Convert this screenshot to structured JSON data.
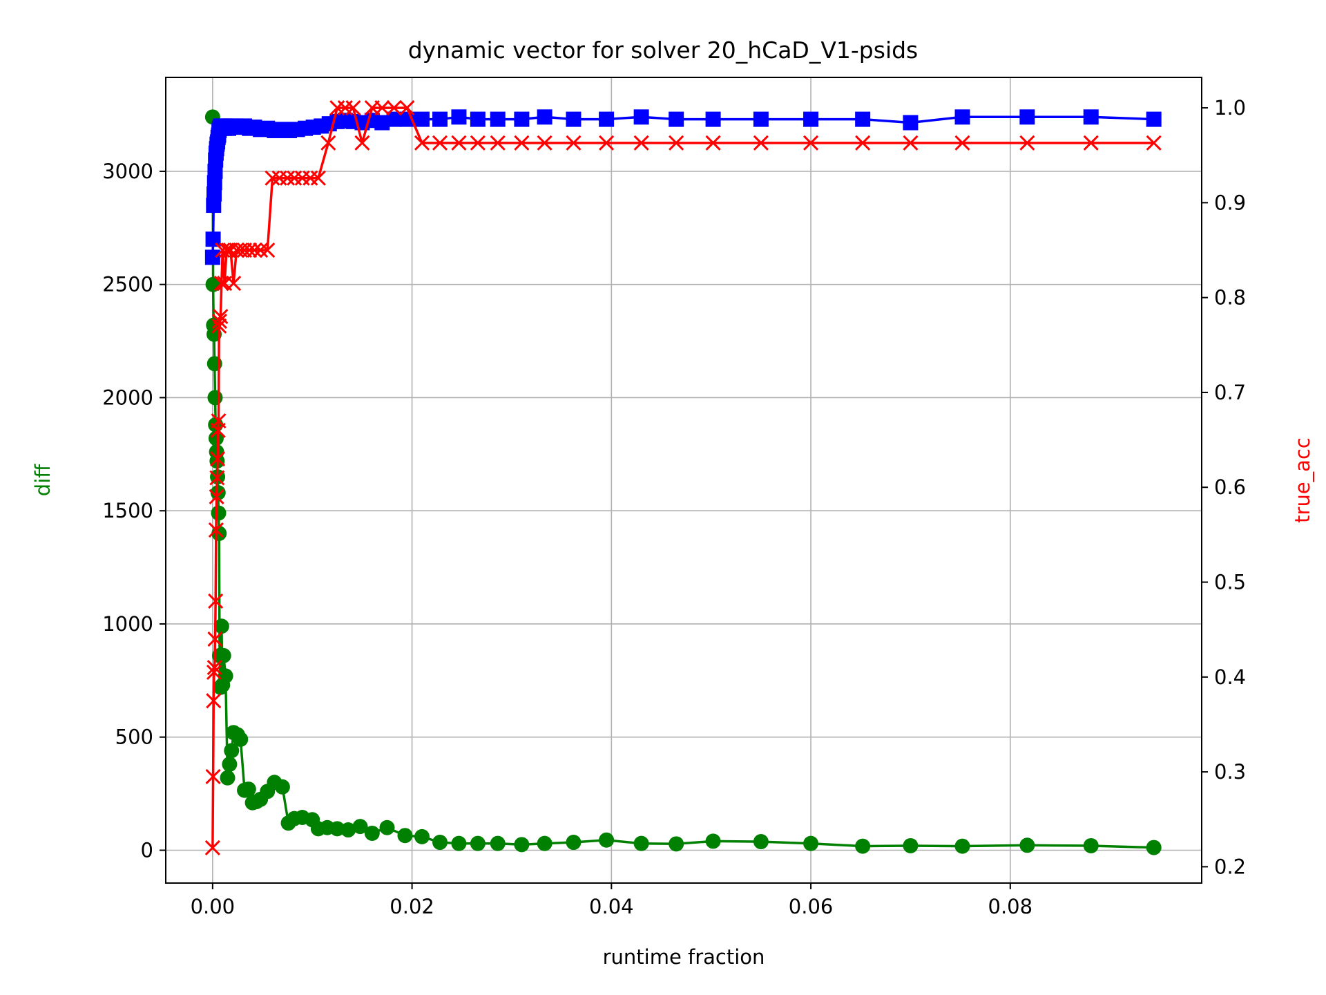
{
  "chart_data": {
    "type": "line",
    "title": "dynamic vector for solver 20_hCaD_V1-psids",
    "xlabel": "runtime fraction",
    "ylabel": "diff",
    "ylabel_right": "true_acc",
    "xlim": [
      -0.0047,
      0.0992
    ],
    "ylim": [
      -145,
      3415
    ],
    "ylim_right": [
      0.1828,
      1.0321
    ],
    "x_ticks": [
      0.0,
      0.02,
      0.04,
      0.06,
      0.08
    ],
    "x_tick_labels": [
      "0.00",
      "0.02",
      "0.04",
      "0.06",
      "0.08"
    ],
    "y_ticks": [
      0,
      500,
      1000,
      1500,
      2000,
      2500,
      3000
    ],
    "y_tick_labels": [
      "0",
      "500",
      "1000",
      "1500",
      "2000",
      "2500",
      "3000"
    ],
    "y_right_ticks": [
      0.2,
      0.3,
      0.4,
      0.5,
      0.6,
      0.7,
      0.8,
      0.9,
      1.0
    ],
    "y_right_tick_labels": [
      "0.2",
      "0.3",
      "0.4",
      "0.5",
      "0.6",
      "0.7",
      "0.8",
      "0.9",
      "1.0"
    ],
    "grid": true,
    "colors": {
      "diff": "#008000",
      "blue": "#0000ff",
      "true_acc": "#ff0000",
      "left_label": "#008000",
      "right_label": "#ff0000"
    },
    "series": [
      {
        "axis": "left",
        "color": "#008000",
        "marker": "circle",
        "points": [
          [
            0.0,
            3240
          ],
          [
            5e-05,
            2500
          ],
          [
            0.0001,
            2320
          ],
          [
            0.00015,
            2280
          ],
          [
            0.0002,
            2150
          ],
          [
            0.00025,
            2000
          ],
          [
            0.0003,
            1880
          ],
          [
            0.00035,
            1820
          ],
          [
            0.0004,
            1760
          ],
          [
            0.00045,
            1720
          ],
          [
            0.0005,
            1650
          ],
          [
            0.00055,
            1580
          ],
          [
            0.0006,
            1490
          ],
          [
            0.00065,
            1400
          ],
          [
            0.0007,
            860
          ],
          [
            0.0008,
            720
          ],
          [
            0.0009,
            990
          ],
          [
            0.001,
            730
          ],
          [
            0.0011,
            860
          ],
          [
            0.0013,
            770
          ],
          [
            0.0015,
            320
          ],
          [
            0.0017,
            380
          ],
          [
            0.0019,
            440
          ],
          [
            0.0021,
            520
          ],
          [
            0.0025,
            510
          ],
          [
            0.0028,
            490
          ],
          [
            0.0032,
            265
          ],
          [
            0.0036,
            270
          ],
          [
            0.004,
            210
          ],
          [
            0.0044,
            215
          ],
          [
            0.0048,
            225
          ],
          [
            0.0055,
            260
          ],
          [
            0.0062,
            300
          ],
          [
            0.007,
            280
          ],
          [
            0.0076,
            120
          ],
          [
            0.0082,
            140
          ],
          [
            0.009,
            145
          ],
          [
            0.01,
            135
          ],
          [
            0.0106,
            95
          ],
          [
            0.0115,
            100
          ],
          [
            0.0125,
            95
          ],
          [
            0.0136,
            90
          ],
          [
            0.0148,
            105
          ],
          [
            0.016,
            75
          ],
          [
            0.0175,
            100
          ],
          [
            0.0193,
            65
          ],
          [
            0.021,
            60
          ],
          [
            0.0228,
            35
          ],
          [
            0.0247,
            30
          ],
          [
            0.0266,
            30
          ],
          [
            0.0286,
            30
          ],
          [
            0.031,
            25
          ],
          [
            0.0333,
            30
          ],
          [
            0.0362,
            35
          ],
          [
            0.0395,
            45
          ],
          [
            0.043,
            30
          ],
          [
            0.0465,
            28
          ],
          [
            0.0502,
            40
          ],
          [
            0.055,
            38
          ],
          [
            0.06,
            30
          ],
          [
            0.0652,
            18
          ],
          [
            0.07,
            20
          ],
          [
            0.0752,
            18
          ],
          [
            0.0817,
            22
          ],
          [
            0.0881,
            20
          ],
          [
            0.0944,
            12
          ]
        ]
      },
      {
        "axis": "left",
        "color": "#0000ff",
        "marker": "square",
        "points": [
          [
            0.0,
            2620
          ],
          [
            5e-05,
            2700
          ],
          [
            0.0001,
            2850
          ],
          [
            0.00015,
            2900
          ],
          [
            0.0002,
            2950
          ],
          [
            0.00025,
            3000
          ],
          [
            0.0003,
            3050
          ],
          [
            0.00035,
            3080
          ],
          [
            0.0004,
            3100
          ],
          [
            0.00045,
            3120
          ],
          [
            0.0005,
            3130
          ],
          [
            0.00055,
            3150
          ],
          [
            0.0006,
            3160
          ],
          [
            0.00065,
            3180
          ],
          [
            0.0007,
            3190
          ],
          [
            0.0008,
            3200
          ],
          [
            0.0009,
            3190
          ],
          [
            0.001,
            3200
          ],
          [
            0.0012,
            3190
          ],
          [
            0.0014,
            3200
          ],
          [
            0.0016,
            3190
          ],
          [
            0.0018,
            3200
          ],
          [
            0.0021,
            3195
          ],
          [
            0.0024,
            3200
          ],
          [
            0.0028,
            3195
          ],
          [
            0.0032,
            3200
          ],
          [
            0.0037,
            3190
          ],
          [
            0.0042,
            3195
          ],
          [
            0.0048,
            3185
          ],
          [
            0.0055,
            3190
          ],
          [
            0.0062,
            3180
          ],
          [
            0.007,
            3185
          ],
          [
            0.0077,
            3180
          ],
          [
            0.0085,
            3185
          ],
          [
            0.0093,
            3190
          ],
          [
            0.0101,
            3195
          ],
          [
            0.0109,
            3200
          ],
          [
            0.0117,
            3210
          ],
          [
            0.0125,
            3220
          ],
          [
            0.0133,
            3225
          ],
          [
            0.0141,
            3220
          ],
          [
            0.015,
            3215
          ],
          [
            0.016,
            3225
          ],
          [
            0.017,
            3215
          ],
          [
            0.0182,
            3230
          ],
          [
            0.0195,
            3230
          ],
          [
            0.021,
            3230
          ],
          [
            0.0228,
            3230
          ],
          [
            0.0247,
            3240
          ],
          [
            0.0266,
            3230
          ],
          [
            0.0286,
            3230
          ],
          [
            0.031,
            3230
          ],
          [
            0.0333,
            3240
          ],
          [
            0.0362,
            3230
          ],
          [
            0.0395,
            3230
          ],
          [
            0.043,
            3240
          ],
          [
            0.0465,
            3230
          ],
          [
            0.0502,
            3230
          ],
          [
            0.055,
            3230
          ],
          [
            0.06,
            3230
          ],
          [
            0.0652,
            3230
          ],
          [
            0.07,
            3215
          ],
          [
            0.0752,
            3240
          ],
          [
            0.0817,
            3240
          ],
          [
            0.0881,
            3240
          ],
          [
            0.0944,
            3230
          ]
        ]
      },
      {
        "axis": "right",
        "name": "true_acc",
        "color": "#ff0000",
        "marker": "x",
        "points": [
          [
            0.0,
            0.22
          ],
          [
            5e-05,
            0.295
          ],
          [
            0.0001,
            0.375
          ],
          [
            0.00015,
            0.405
          ],
          [
            0.0002,
            0.41
          ],
          [
            0.00025,
            0.44
          ],
          [
            0.0003,
            0.48
          ],
          [
            0.00035,
            0.555
          ],
          [
            0.0004,
            0.59
          ],
          [
            0.00045,
            0.61
          ],
          [
            0.0005,
            0.63
          ],
          [
            0.00055,
            0.66
          ],
          [
            0.0006,
            0.67
          ],
          [
            0.00065,
            0.77
          ],
          [
            0.0007,
            0.775
          ],
          [
            0.0008,
            0.78
          ],
          [
            0.0009,
            0.815
          ],
          [
            0.001,
            0.85
          ],
          [
            0.0012,
            0.815
          ],
          [
            0.0014,
            0.85
          ],
          [
            0.0016,
            0.85
          ],
          [
            0.0018,
            0.85
          ],
          [
            0.0021,
            0.815
          ],
          [
            0.0024,
            0.85
          ],
          [
            0.0028,
            0.85
          ],
          [
            0.0032,
            0.85
          ],
          [
            0.0037,
            0.85
          ],
          [
            0.0042,
            0.85
          ],
          [
            0.0048,
            0.85
          ],
          [
            0.0055,
            0.85
          ],
          [
            0.006,
            0.926
          ],
          [
            0.0067,
            0.926
          ],
          [
            0.0075,
            0.926
          ],
          [
            0.0082,
            0.926
          ],
          [
            0.009,
            0.926
          ],
          [
            0.0098,
            0.926
          ],
          [
            0.0106,
            0.926
          ],
          [
            0.0116,
            0.963
          ],
          [
            0.0125,
            1.0
          ],
          [
            0.0133,
            1.0
          ],
          [
            0.0141,
            1.0
          ],
          [
            0.015,
            0.963
          ],
          [
            0.016,
            1.0
          ],
          [
            0.017,
            1.0
          ],
          [
            0.0182,
            1.0
          ],
          [
            0.0195,
            1.0
          ],
          [
            0.021,
            0.963
          ],
          [
            0.0228,
            0.963
          ],
          [
            0.0247,
            0.963
          ],
          [
            0.0266,
            0.963
          ],
          [
            0.0286,
            0.963
          ],
          [
            0.031,
            0.963
          ],
          [
            0.0333,
            0.963
          ],
          [
            0.0362,
            0.963
          ],
          [
            0.0395,
            0.963
          ],
          [
            0.043,
            0.963
          ],
          [
            0.0465,
            0.963
          ],
          [
            0.0502,
            0.963
          ],
          [
            0.055,
            0.963
          ],
          [
            0.06,
            0.963
          ],
          [
            0.0652,
            0.963
          ],
          [
            0.07,
            0.963
          ],
          [
            0.0752,
            0.963
          ],
          [
            0.0817,
            0.963
          ],
          [
            0.0881,
            0.963
          ],
          [
            0.0944,
            0.963
          ]
        ]
      }
    ]
  }
}
